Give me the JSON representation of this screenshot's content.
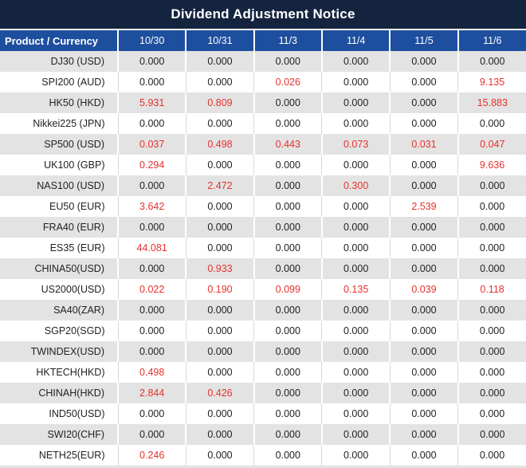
{
  "title": "Dividend Adjustment Notice",
  "colors": {
    "title_bg": "#14233e",
    "header_bg": "#1d4f9e",
    "row_alt_bg": "#e3e3e3",
    "row_bg": "#ffffff",
    "negative_value": "#e4322d",
    "value_text": "#222222",
    "header_text": "#ffffff"
  },
  "table": {
    "header": [
      "Product / Currency",
      "10/30",
      "10/31",
      "11/3",
      "11/4",
      "11/5",
      "11/6"
    ],
    "rows": [
      {
        "product": "DJ30 (USD)",
        "values": [
          {
            "text": "0.000",
            "red": false
          },
          {
            "text": "0.000",
            "red": false
          },
          {
            "text": "0.000",
            "red": false
          },
          {
            "text": "0.000",
            "red": false
          },
          {
            "text": "0.000",
            "red": false
          },
          {
            "text": "0.000",
            "red": false
          }
        ]
      },
      {
        "product": "SPI200 (AUD)",
        "values": [
          {
            "text": "0.000",
            "red": false
          },
          {
            "text": "0.000",
            "red": false
          },
          {
            "text": "0.026",
            "red": true
          },
          {
            "text": "0.000",
            "red": false
          },
          {
            "text": "0.000",
            "red": false
          },
          {
            "text": "9.135",
            "red": true
          }
        ]
      },
      {
        "product": "HK50 (HKD)",
        "values": [
          {
            "text": "5.931",
            "red": true
          },
          {
            "text": "0.809",
            "red": true
          },
          {
            "text": "0.000",
            "red": false
          },
          {
            "text": "0.000",
            "red": false
          },
          {
            "text": "0.000",
            "red": false
          },
          {
            "text": "15.883",
            "red": true
          }
        ]
      },
      {
        "product": "Nikkei225 (JPN)",
        "values": [
          {
            "text": "0.000",
            "red": false
          },
          {
            "text": "0.000",
            "red": false
          },
          {
            "text": "0.000",
            "red": false
          },
          {
            "text": "0.000",
            "red": false
          },
          {
            "text": "0.000",
            "red": false
          },
          {
            "text": "0.000",
            "red": false
          }
        ]
      },
      {
        "product": "SP500 (USD)",
        "values": [
          {
            "text": "0.037",
            "red": true
          },
          {
            "text": "0.498",
            "red": true
          },
          {
            "text": "0.443",
            "red": true
          },
          {
            "text": "0.073",
            "red": true
          },
          {
            "text": "0.031",
            "red": true
          },
          {
            "text": "0.047",
            "red": true
          }
        ]
      },
      {
        "product": "UK100 (GBP)",
        "values": [
          {
            "text": "0.294",
            "red": true
          },
          {
            "text": "0.000",
            "red": false
          },
          {
            "text": "0.000",
            "red": false
          },
          {
            "text": "0.000",
            "red": false
          },
          {
            "text": "0.000",
            "red": false
          },
          {
            "text": "9.636",
            "red": true
          }
        ]
      },
      {
        "product": "NAS100 (USD)",
        "values": [
          {
            "text": "0.000",
            "red": false
          },
          {
            "text": "2.472",
            "red": true
          },
          {
            "text": "0.000",
            "red": false
          },
          {
            "text": "0.300",
            "red": true
          },
          {
            "text": "0.000",
            "red": false
          },
          {
            "text": "0.000",
            "red": false
          }
        ]
      },
      {
        "product": "EU50 (EUR)",
        "values": [
          {
            "text": "3.642",
            "red": true
          },
          {
            "text": "0.000",
            "red": false
          },
          {
            "text": "0.000",
            "red": false
          },
          {
            "text": "0.000",
            "red": false
          },
          {
            "text": "2.539",
            "red": true
          },
          {
            "text": "0.000",
            "red": false
          }
        ]
      },
      {
        "product": "FRA40 (EUR)",
        "values": [
          {
            "text": "0.000",
            "red": false
          },
          {
            "text": "0.000",
            "red": false
          },
          {
            "text": "0.000",
            "red": false
          },
          {
            "text": "0.000",
            "red": false
          },
          {
            "text": "0.000",
            "red": false
          },
          {
            "text": "0.000",
            "red": false
          }
        ]
      },
      {
        "product": "ES35 (EUR)",
        "values": [
          {
            "text": "44.081",
            "red": true
          },
          {
            "text": "0.000",
            "red": false
          },
          {
            "text": "0.000",
            "red": false
          },
          {
            "text": "0.000",
            "red": false
          },
          {
            "text": "0.000",
            "red": false
          },
          {
            "text": "0.000",
            "red": false
          }
        ]
      },
      {
        "product": "CHINA50(USD)",
        "values": [
          {
            "text": "0.000",
            "red": false
          },
          {
            "text": "0.933",
            "red": true
          },
          {
            "text": "0.000",
            "red": false
          },
          {
            "text": "0.000",
            "red": false
          },
          {
            "text": "0.000",
            "red": false
          },
          {
            "text": "0.000",
            "red": false
          }
        ]
      },
      {
        "product": "US2000(USD)",
        "values": [
          {
            "text": "0.022",
            "red": true
          },
          {
            "text": "0.190",
            "red": true
          },
          {
            "text": "0.099",
            "red": true
          },
          {
            "text": "0.135",
            "red": true
          },
          {
            "text": "0.039",
            "red": true
          },
          {
            "text": "0.118",
            "red": true
          }
        ]
      },
      {
        "product": "SA40(ZAR)",
        "values": [
          {
            "text": "0.000",
            "red": false
          },
          {
            "text": "0.000",
            "red": false
          },
          {
            "text": "0.000",
            "red": false
          },
          {
            "text": "0.000",
            "red": false
          },
          {
            "text": "0.000",
            "red": false
          },
          {
            "text": "0.000",
            "red": false
          }
        ]
      },
      {
        "product": "SGP20(SGD)",
        "values": [
          {
            "text": "0.000",
            "red": false
          },
          {
            "text": "0.000",
            "red": false
          },
          {
            "text": "0.000",
            "red": false
          },
          {
            "text": "0.000",
            "red": false
          },
          {
            "text": "0.000",
            "red": false
          },
          {
            "text": "0.000",
            "red": false
          }
        ]
      },
      {
        "product": "TWINDEX(USD)",
        "values": [
          {
            "text": "0.000",
            "red": false
          },
          {
            "text": "0.000",
            "red": false
          },
          {
            "text": "0.000",
            "red": false
          },
          {
            "text": "0.000",
            "red": false
          },
          {
            "text": "0.000",
            "red": false
          },
          {
            "text": "0.000",
            "red": false
          }
        ]
      },
      {
        "product": "HKTECH(HKD)",
        "values": [
          {
            "text": "0.498",
            "red": true
          },
          {
            "text": "0.000",
            "red": false
          },
          {
            "text": "0.000",
            "red": false
          },
          {
            "text": "0.000",
            "red": false
          },
          {
            "text": "0.000",
            "red": false
          },
          {
            "text": "0.000",
            "red": false
          }
        ]
      },
      {
        "product": "CHINAH(HKD)",
        "values": [
          {
            "text": "2.844",
            "red": true
          },
          {
            "text": "0.426",
            "red": true
          },
          {
            "text": "0.000",
            "red": false
          },
          {
            "text": "0.000",
            "red": false
          },
          {
            "text": "0.000",
            "red": false
          },
          {
            "text": "0.000",
            "red": false
          }
        ]
      },
      {
        "product": "IND50(USD)",
        "values": [
          {
            "text": "0.000",
            "red": false
          },
          {
            "text": "0.000",
            "red": false
          },
          {
            "text": "0.000",
            "red": false
          },
          {
            "text": "0.000",
            "red": false
          },
          {
            "text": "0.000",
            "red": false
          },
          {
            "text": "0.000",
            "red": false
          }
        ]
      },
      {
        "product": "SWI20(CHF)",
        "values": [
          {
            "text": "0.000",
            "red": false
          },
          {
            "text": "0.000",
            "red": false
          },
          {
            "text": "0.000",
            "red": false
          },
          {
            "text": "0.000",
            "red": false
          },
          {
            "text": "0.000",
            "red": false
          },
          {
            "text": "0.000",
            "red": false
          }
        ]
      },
      {
        "product": "NETH25(EUR)",
        "values": [
          {
            "text": "0.246",
            "red": true
          },
          {
            "text": "0.000",
            "red": false
          },
          {
            "text": "0.000",
            "red": false
          },
          {
            "text": "0.000",
            "red": false
          },
          {
            "text": "0.000",
            "red": false
          },
          {
            "text": "0.000",
            "red": false
          }
        ]
      }
    ]
  }
}
